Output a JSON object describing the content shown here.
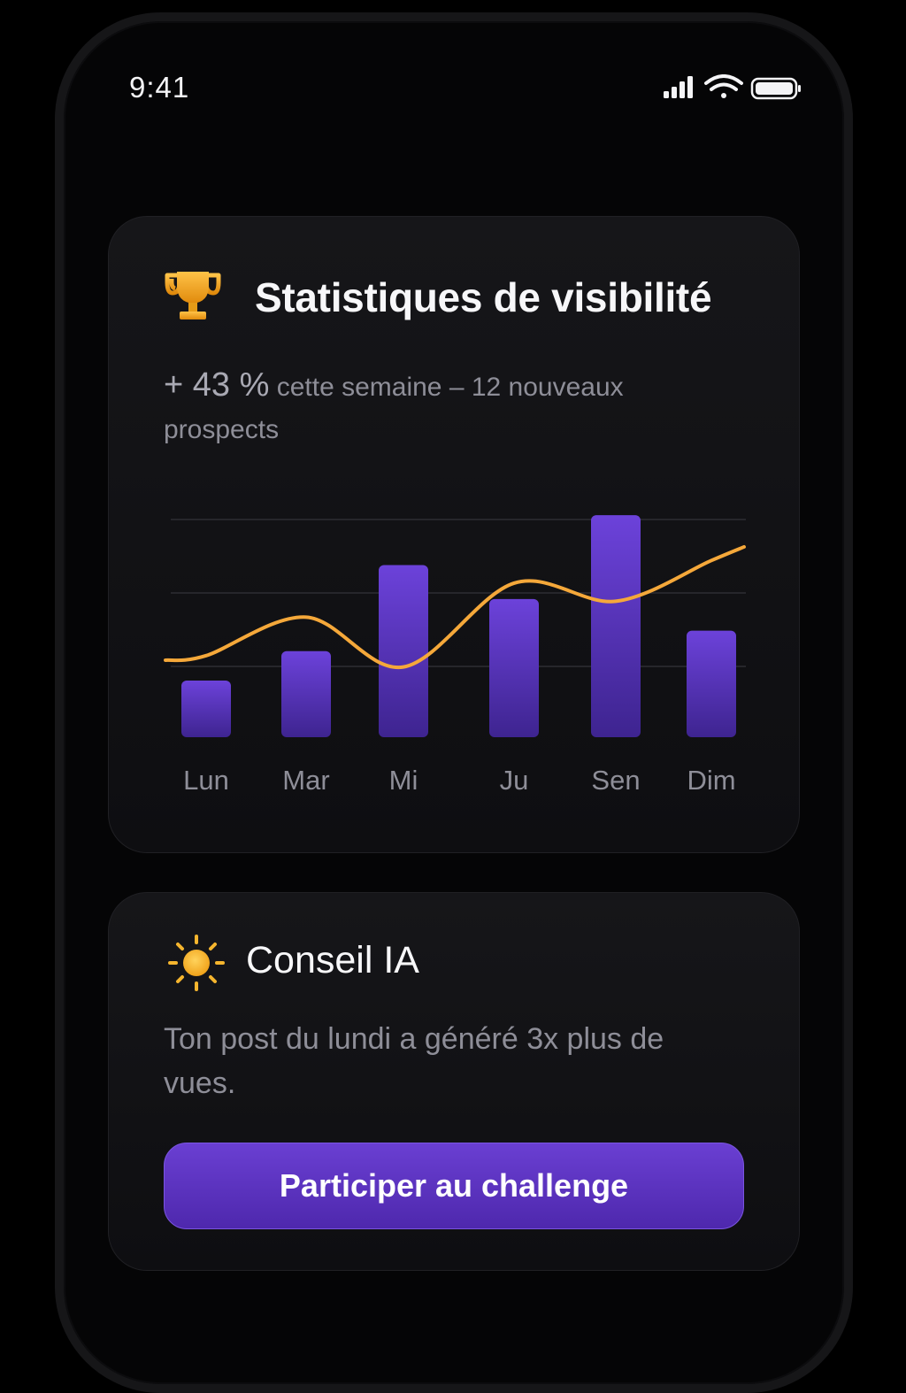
{
  "status_bar": {
    "time": "9:41",
    "icons": [
      "signal-icon",
      "wifi-icon",
      "battery-icon"
    ]
  },
  "stats_card": {
    "icon": "trophy-icon",
    "title": "Statistiques de visibilité",
    "summary_highlight": "+ 43 %",
    "summary_rest": " cette semaine – 12 nouveaux prospects"
  },
  "chart_data": {
    "type": "bar",
    "categories": [
      "Lun",
      "Mar",
      "Mi",
      "Ju",
      "Sen",
      "Dim"
    ],
    "series": [
      {
        "type": "bar",
        "values": [
          25,
          38,
          76,
          61,
          98,
          47
        ]
      },
      {
        "type": "line",
        "values": [
          36,
          53,
          31,
          68,
          60,
          78
        ]
      }
    ],
    "ylim": [
      0,
      100
    ],
    "grid": true,
    "colors": {
      "bar": "#6a3fd2",
      "line": "#f5a83a",
      "grid": "#26262b"
    }
  },
  "tip_card": {
    "icon": "sun-icon",
    "title": "Conseil IA",
    "text": "Ton post du lundi a généré 3x plus de vues.",
    "button_label": "Participer au challenge"
  },
  "colors": {
    "background": "#000000",
    "card": "#141417",
    "accent": "#5b34c4",
    "gold": "#f5a623"
  }
}
